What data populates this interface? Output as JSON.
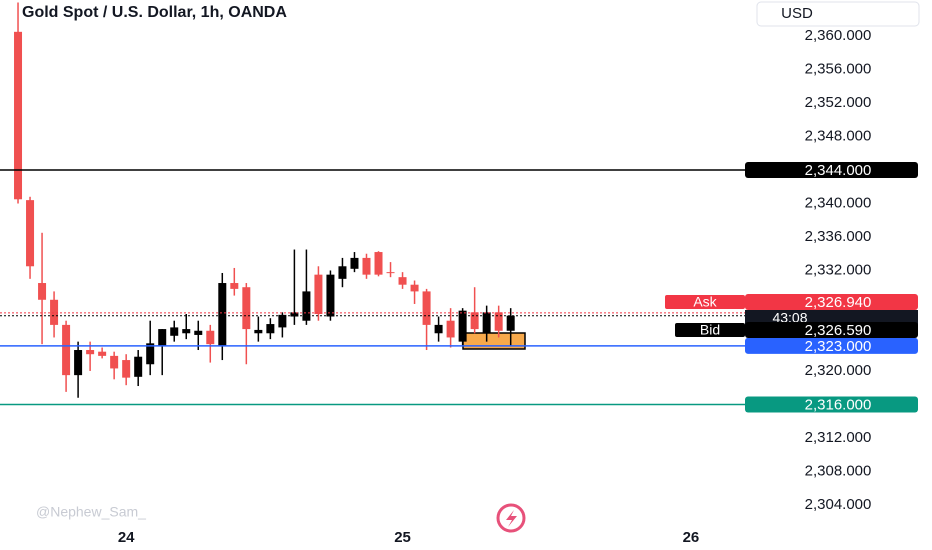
{
  "chart_data": {
    "type": "candlestick",
    "title": "Gold Spot / U.S. Dollar, 1h, OANDA",
    "currency": "USD",
    "watermark": "@Nephew_Sam_",
    "up_color": "#000000",
    "down_color": "#f05050",
    "x": [
      0,
      1,
      2,
      3,
      4,
      5,
      6,
      7,
      8,
      9,
      10,
      11,
      12,
      13,
      14,
      15,
      16,
      17,
      18,
      19,
      20,
      21,
      22,
      23,
      24,
      25,
      26,
      27,
      28,
      29,
      30,
      31,
      32,
      33,
      34,
      35,
      36,
      37,
      38,
      39,
      40,
      41
    ],
    "open": [
      2360.5,
      2340.4,
      2330.5,
      2328.5,
      2325.5,
      2319.5,
      2322.5,
      2322.3,
      2321.8,
      2321.3,
      2319.3,
      2320.8,
      2323,
      2324.2,
      2324.5,
      2324.3,
      2324.8,
      2323,
      2330.5,
      2330,
      2324.5,
      2324.5,
      2325.2,
      2326.5,
      2326,
      2331.5,
      2326.5,
      2331,
      2332.2,
      2333.5,
      2334.2,
      2331.8,
      2331.2,
      2330.3,
      2329.5,
      2324.5,
      2326,
      2323.5,
      2327,
      2324.5,
      2327,
      2324.8
    ],
    "high": [
      2364,
      2340.8,
      2336.5,
      2329.5,
      2326,
      2323.5,
      2323.5,
      2322.8,
      2322.3,
      2322,
      2322.5,
      2326,
      2325,
      2326,
      2326.8,
      2326,
      2325.5,
      2331.7,
      2332.3,
      2330.5,
      2326.5,
      2326.3,
      2327,
      2334.5,
      2334.5,
      2332.5,
      2332,
      2333.5,
      2334.2,
      2334,
      2334.3,
      2333,
      2331.8,
      2330.8,
      2329.8,
      2326.5,
      2327.5,
      2327.5,
      2330,
      2327.8,
      2327.8,
      2327.5
    ],
    "low": [
      2340,
      2331,
      2323.2,
      2324,
      2317.5,
      2316.8,
      2320,
      2321.5,
      2319,
      2318.3,
      2318.2,
      2319.5,
      2319.5,
      2323.5,
      2323.8,
      2322.5,
      2321,
      2321.3,
      2329,
      2320.8,
      2323.5,
      2323.8,
      2324,
      2325.5,
      2325.5,
      2326,
      2326,
      2330,
      2331.8,
      2331,
      2331.3,
      2331.2,
      2329.8,
      2328,
      2322.5,
      2323.5,
      2322.8,
      2323,
      2324.5,
      2323.5,
      2324,
      2323
    ],
    "close": [
      2340.5,
      2332.5,
      2328.5,
      2325.5,
      2319.5,
      2322.5,
      2322,
      2321.8,
      2320.3,
      2319.2,
      2321.7,
      2323.3,
      2325,
      2325.2,
      2325,
      2324.8,
      2323.2,
      2330.5,
      2329.8,
      2325,
      2324.9,
      2325.6,
      2326.7,
      2327,
      2329.5,
      2326.8,
      2331.5,
      2332.5,
      2333.5,
      2331.5,
      2331.5,
      2331.7,
      2330.3,
      2329.5,
      2325.5,
      2325.5,
      2324,
      2327.2,
      2325,
      2327,
      2324.8,
      2326.6
    ],
    "xlim": [
      -1.5,
      60.5
    ],
    "xticks": [
      {
        "value": 9,
        "label": "24"
      },
      {
        "value": 32,
        "label": "25"
      },
      {
        "value": 56,
        "label": "26"
      }
    ],
    "ylim": [
      2302.2,
      2364.3
    ],
    "yticks": [
      {
        "value": 2360,
        "label": "2,360.000"
      },
      {
        "value": 2356,
        "label": "2,356.000"
      },
      {
        "value": 2352,
        "label": "2,352.000"
      },
      {
        "value": 2348,
        "label": "2,348.000"
      },
      {
        "value": 2340,
        "label": "2,340.000"
      },
      {
        "value": 2336,
        "label": "2,336.000"
      },
      {
        "value": 2332,
        "label": "2,332.000"
      },
      {
        "value": 2320,
        "label": "2,320.000"
      },
      {
        "value": 2312,
        "label": "2,312.000"
      },
      {
        "value": 2308,
        "label": "2,308.000"
      },
      {
        "value": 2304,
        "label": "2,304.000"
      }
    ],
    "hlines": [
      {
        "value": 2344,
        "label": "2,344.000",
        "color": "#000000"
      },
      {
        "value": 2323,
        "label": "2,323.000",
        "color": "#2962ff"
      },
      {
        "value": 2316,
        "label": "2,316.000",
        "color": "#089981"
      }
    ],
    "ask": {
      "name": "Ask",
      "value": 2326.94,
      "label": "2,326.940",
      "color": "#f23645"
    },
    "bid": {
      "name": "Bid",
      "value": 2326.59,
      "label": "2,326.590",
      "color": "#000000"
    },
    "countdown": "43:08"
  }
}
